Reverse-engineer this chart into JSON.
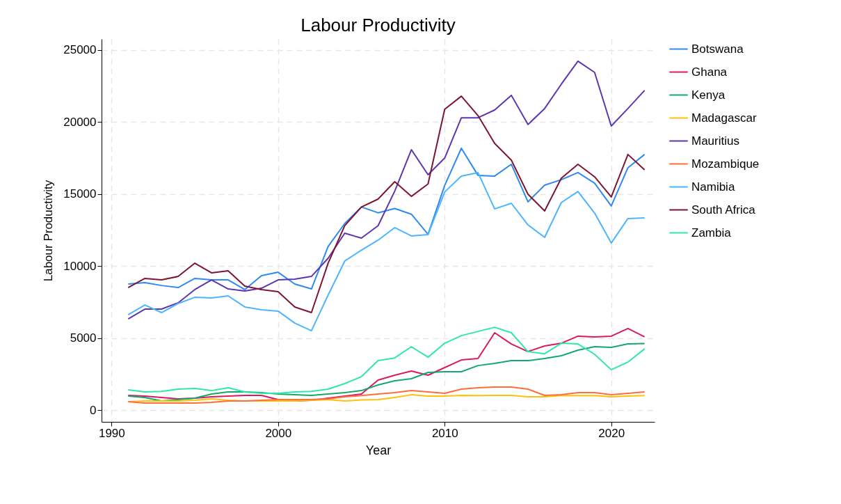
{
  "chart_data": {
    "type": "line",
    "title": "Labour Productivity",
    "xlabel": "Year",
    "ylabel": "Labour Productivity",
    "x": [
      1991,
      1992,
      1993,
      1994,
      1995,
      1996,
      1997,
      1998,
      1999,
      2000,
      2001,
      2002,
      2003,
      2004,
      2005,
      2006,
      2007,
      2008,
      2009,
      2010,
      2011,
      2012,
      2013,
      2014,
      2015,
      2016,
      2017,
      2018,
      2019,
      2020,
      2021,
      2022
    ],
    "xlim": [
      1989.4,
      2022.6
    ],
    "xticks": [
      1990,
      2000,
      2010,
      2020
    ],
    "ylim": [
      -820,
      25770
    ],
    "yticks": [
      0,
      5000,
      10000,
      15000,
      20000,
      25000
    ],
    "grid": true,
    "legend": "right",
    "line_style": "solid",
    "series": [
      {
        "name": "Botswana",
        "color": "#2e8af0",
        "values": [
          8750,
          8850,
          8650,
          8510,
          9140,
          9040,
          9040,
          8370,
          9330,
          9570,
          8750,
          8410,
          11360,
          12960,
          14100,
          13700,
          14000,
          13600,
          12200,
          15600,
          18180,
          16300,
          16250,
          17070,
          14460,
          15620,
          16000,
          16490,
          15760,
          14170,
          16830,
          17750
        ]
      },
      {
        "name": "Ghana",
        "color": "#d81b60",
        "values": [
          1020,
          970,
          870,
          770,
          820,
          920,
          970,
          1020,
          1020,
          730,
          630,
          680,
          820,
          970,
          1110,
          2080,
          2420,
          2710,
          2420,
          2950,
          3480,
          3580,
          5370,
          4590,
          4060,
          4450,
          4640,
          5130,
          5080,
          5130,
          5660,
          5080
        ]
      },
      {
        "name": "Kenya",
        "color": "#13a86c",
        "values": [
          970,
          870,
          630,
          730,
          820,
          1110,
          1260,
          1260,
          1210,
          1110,
          1060,
          1020,
          1110,
          1210,
          1350,
          1740,
          2030,
          2180,
          2610,
          2660,
          2660,
          3090,
          3240,
          3430,
          3430,
          3580,
          3770,
          4160,
          4400,
          4350,
          4590,
          4620
        ]
      },
      {
        "name": "Madagascar",
        "color": "#ffc107",
        "values": [
          580,
          630,
          630,
          630,
          680,
          770,
          680,
          630,
          630,
          630,
          630,
          680,
          730,
          630,
          700,
          730,
          870,
          1060,
          970,
          970,
          1020,
          1000,
          1020,
          1020,
          920,
          920,
          1000,
          1000,
          1000,
          920,
          970,
          1000
        ]
      },
      {
        "name": "Mauritius",
        "color": "#5e35b1",
        "values": [
          6330,
          7010,
          7010,
          7450,
          8370,
          9040,
          8410,
          8270,
          8460,
          9040,
          9090,
          9280,
          10540,
          12280,
          11940,
          12800,
          15200,
          18080,
          16340,
          17500,
          20300,
          20300,
          20840,
          21860,
          19830,
          20940,
          22630,
          24230,
          23450,
          19730,
          20940,
          22200
        ]
      },
      {
        "name": "Mozambique",
        "color": "#fe6e3a",
        "values": [
          580,
          480,
          480,
          480,
          480,
          530,
          630,
          630,
          680,
          730,
          730,
          730,
          770,
          920,
          1000,
          1110,
          1210,
          1350,
          1260,
          1160,
          1450,
          1550,
          1600,
          1600,
          1450,
          1020,
          1060,
          1210,
          1210,
          1060,
          1160,
          1260
        ]
      },
      {
        "name": "Namibia",
        "color": "#4cb5ff",
        "values": [
          6620,
          7300,
          6770,
          7400,
          7830,
          7790,
          7930,
          7160,
          6960,
          6870,
          6040,
          5510,
          7980,
          10350,
          11100,
          11800,
          12670,
          12090,
          12190,
          15140,
          16250,
          16490,
          13970,
          14360,
          12860,
          11990,
          14410,
          15180,
          13680,
          11600,
          13300,
          13350
        ]
      },
      {
        "name": "South Africa",
        "color": "#7e1530",
        "values": [
          8510,
          9140,
          9040,
          9280,
          10200,
          9530,
          9670,
          8610,
          8370,
          8220,
          7160,
          6770,
          10200,
          12810,
          14100,
          14650,
          15860,
          14840,
          15700,
          20890,
          21800,
          20450,
          18520,
          17360,
          14990,
          13830,
          16100,
          17070,
          16200,
          14800,
          17750,
          16680
        ]
      },
      {
        "name": "Zambia",
        "color": "#2ee8a6",
        "values": [
          1400,
          1260,
          1300,
          1450,
          1500,
          1350,
          1550,
          1260,
          1160,
          1160,
          1260,
          1300,
          1450,
          1840,
          2320,
          3430,
          3620,
          4400,
          3670,
          4640,
          5170,
          5460,
          5750,
          5370,
          4060,
          3910,
          4640,
          4590,
          3870,
          2800,
          3330,
          4250
        ]
      }
    ]
  }
}
